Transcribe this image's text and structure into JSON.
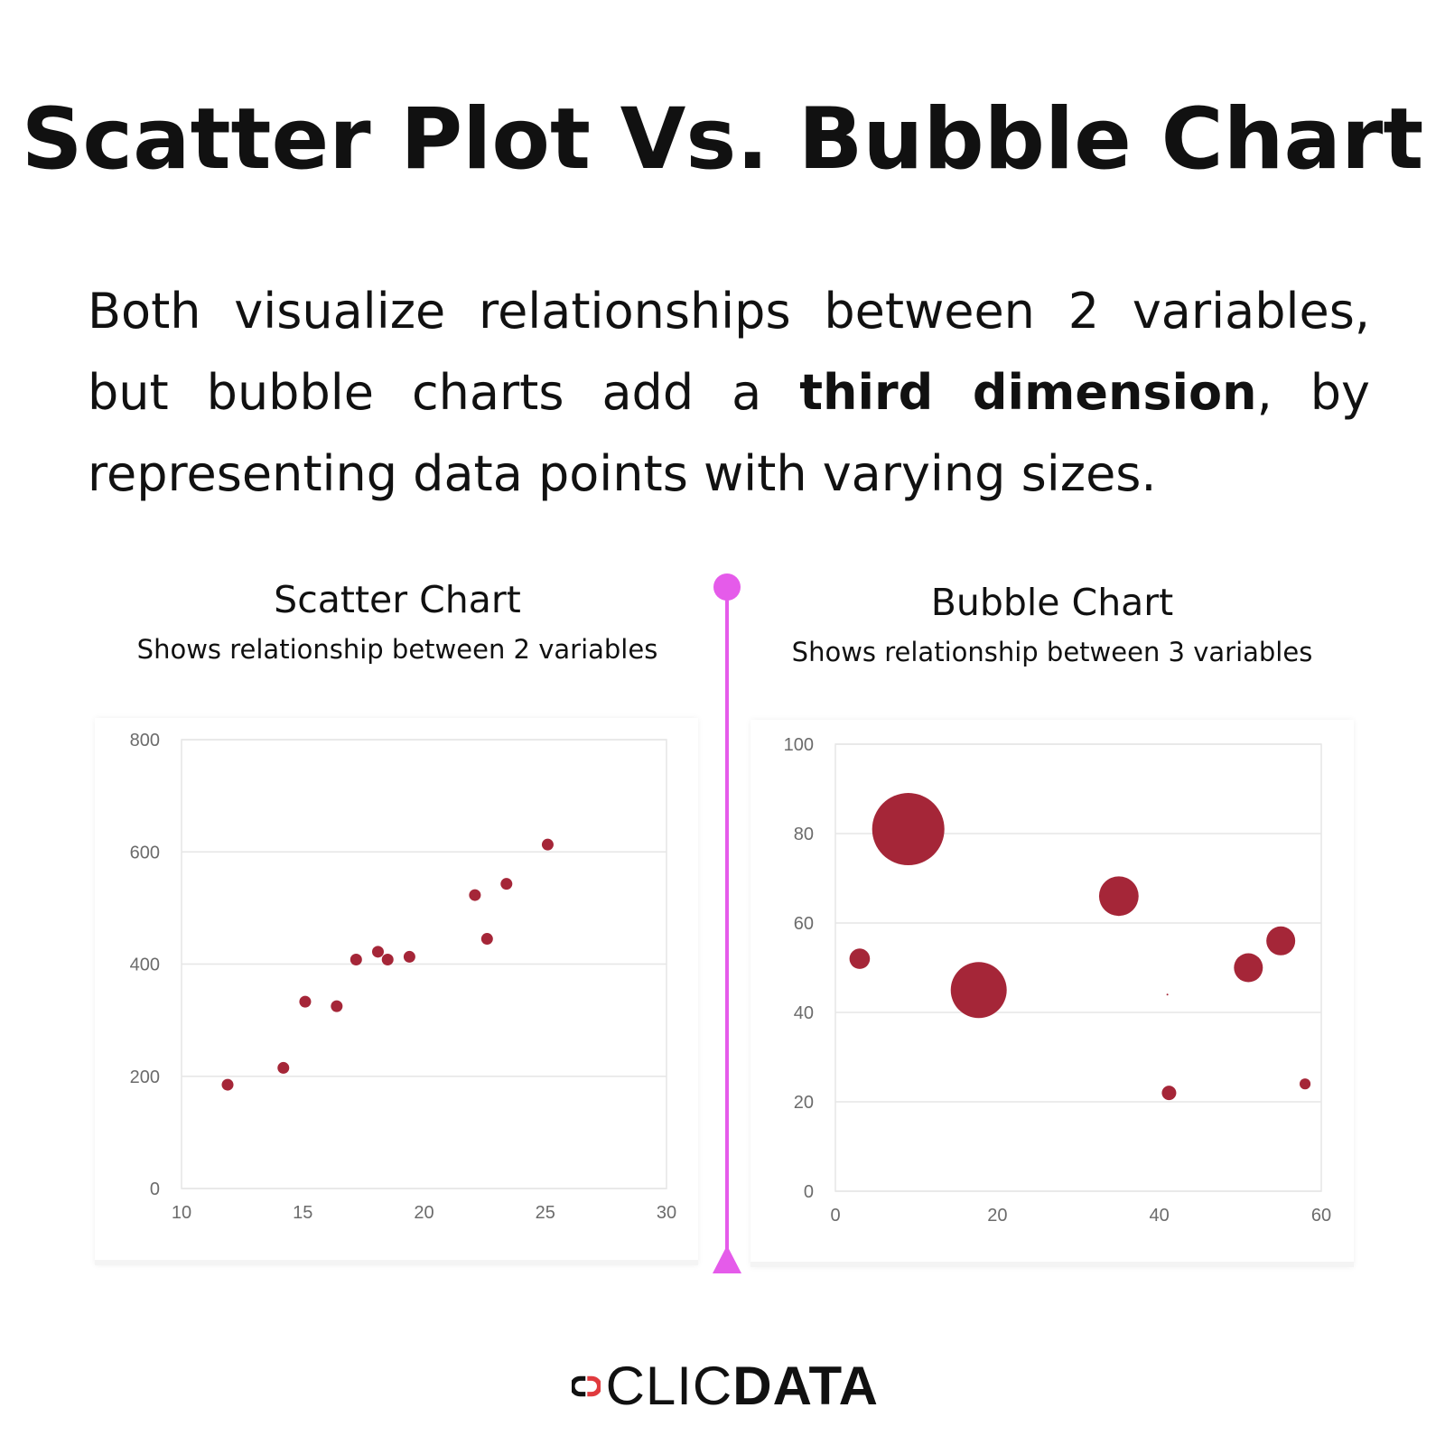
{
  "title": "Scatter Plot Vs. Bubble Chart",
  "intro": {
    "part1": "Both visualize relationships between 2 variables, but bubble charts add a ",
    "bold": "third dimension",
    "part2": ", by representing data points with varying sizes."
  },
  "colors": {
    "point": "#A52638",
    "divider": "#E55BEA",
    "grid": "#E6E6E6",
    "axis_text": "#6B6B6B",
    "logo_red": "#E03A3E"
  },
  "logo": {
    "text_light": "CLIC",
    "text_bold": "DATA"
  },
  "chart_data": [
    {
      "type": "scatter",
      "title": "Scatter Chart",
      "subtitle": "Shows relationship between 2 variables",
      "xlim": [
        10,
        30
      ],
      "ylim": [
        0,
        800
      ],
      "xticks": [
        "10",
        "15",
        "20",
        "25",
        "30"
      ],
      "yticks": [
        "0",
        "200",
        "400",
        "600",
        "800"
      ],
      "grid": "horizontal",
      "points": [
        {
          "x": 11.9,
          "y": 185
        },
        {
          "x": 14.2,
          "y": 215
        },
        {
          "x": 15.1,
          "y": 333
        },
        {
          "x": 16.4,
          "y": 325
        },
        {
          "x": 17.2,
          "y": 408
        },
        {
          "x": 18.1,
          "y": 422
        },
        {
          "x": 18.5,
          "y": 408
        },
        {
          "x": 19.4,
          "y": 413
        },
        {
          "x": 22.1,
          "y": 523
        },
        {
          "x": 22.6,
          "y": 445
        },
        {
          "x": 23.4,
          "y": 543
        },
        {
          "x": 25.1,
          "y": 613
        }
      ]
    },
    {
      "type": "bubble",
      "title": "Bubble Chart",
      "subtitle": "Shows relationship between 3 variables",
      "xlim": [
        0,
        60
      ],
      "ylim": [
        0,
        100
      ],
      "xticks": [
        "0",
        "20",
        "40",
        "60"
      ],
      "yticks": [
        "0",
        "20",
        "40",
        "60",
        "80",
        "100"
      ],
      "grid": "horizontal",
      "points": [
        {
          "x": 3,
          "y": 52,
          "size": 8
        },
        {
          "x": 9,
          "y": 81,
          "size": 100
        },
        {
          "x": 17.7,
          "y": 45,
          "size": 60
        },
        {
          "x": 35,
          "y": 66,
          "size": 30
        },
        {
          "x": 41,
          "y": 44,
          "size": 0.02
        },
        {
          "x": 41.2,
          "y": 22,
          "size": 4
        },
        {
          "x": 51,
          "y": 50,
          "size": 16
        },
        {
          "x": 55,
          "y": 56,
          "size": 16
        },
        {
          "x": 58,
          "y": 24,
          "size": 2.3
        }
      ]
    }
  ]
}
